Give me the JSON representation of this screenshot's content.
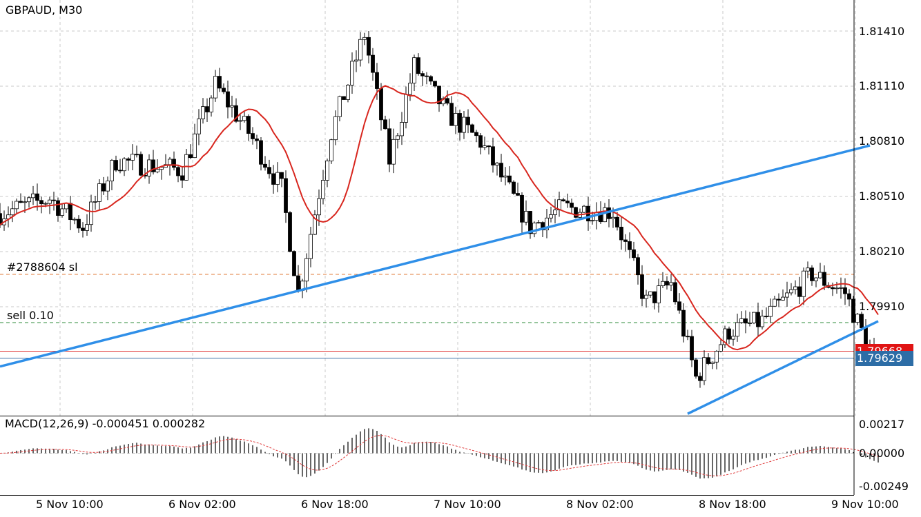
{
  "window": {
    "title": "GBPAUD, M30"
  },
  "colors": {
    "bullish": "#ffffff",
    "bearish": "#000000",
    "ma": "#d8261e",
    "trendline": "#2f8fe8",
    "sl_line": "#e07b39",
    "sell_line": "#2e8b3a",
    "bid_line": "#e03a3a",
    "ask_line": "#3a6fa8",
    "grid": "#c8c8c8",
    "signal": "#e03a3a",
    "ask_tag": "#2d6da6",
    "bid_tag": "#e01414"
  },
  "price_axis": {
    "ticks": [
      "1.81410",
      "1.81110",
      "1.80810",
      "1.80510",
      "1.80210",
      "1.79910"
    ],
    "bid_tag": "1.79668",
    "ask_tag": "1.79629"
  },
  "orders": {
    "sl_label": "#2788604 sl",
    "sell_label": "sell 0.10"
  },
  "indicator": {
    "label": "MACD(12,26,9) -0.000451 0.000282",
    "ticks": [
      "0.00217",
      "0.00000",
      "-0.00249"
    ]
  },
  "time_axis": {
    "ticks": [
      "5 Nov 10:00",
      "6 Nov 02:00",
      "6 Nov 18:00",
      "7 Nov 10:00",
      "8 Nov 02:00",
      "8 Nov 18:00",
      "9 Nov 10:00"
    ]
  },
  "chart_data": {
    "type": "candlestick",
    "symbol": "GBPAUD",
    "timeframe": "M30",
    "ylim": [
      1.794,
      1.816
    ],
    "trendlines": [
      {
        "name": "upper",
        "from": [
          "5 Nov 00:00",
          1.7966
        ],
        "to": [
          "9 Nov 09:00",
          1.8083
        ]
      },
      {
        "name": "lower",
        "from": [
          "8 Nov 11:00",
          1.7941
        ],
        "to": [
          "9 Nov 10:00",
          1.799
        ]
      }
    ],
    "levels": [
      {
        "label": "#2788604 sl",
        "value": 1.798
      },
      {
        "label": "sell 0.10",
        "value": 1.7973
      }
    ],
    "anchors": [
      {
        "time": "5 Nov 00:00",
        "close": 1.8047
      },
      {
        "time": "5 Nov 06:00",
        "close": 1.8055
      },
      {
        "time": "5 Nov 10:00",
        "close": 1.804
      },
      {
        "time": "5 Nov 14:00",
        "close": 1.8075
      },
      {
        "time": "5 Nov 22:00",
        "close": 1.807
      },
      {
        "time": "6 Nov 02:00",
        "close": 1.8115
      },
      {
        "time": "6 Nov 06:00",
        "close": 1.809
      },
      {
        "time": "6 Nov 10:00",
        "close": 1.806
      },
      {
        "time": "6 Nov 12:00",
        "close": 1.8005
      },
      {
        "time": "6 Nov 16:00",
        "close": 1.809
      },
      {
        "time": "6 Nov 20:00",
        "close": 1.8142
      },
      {
        "time": "6 Nov 23:00",
        "close": 1.8075
      },
      {
        "time": "7 Nov 02:00",
        "close": 1.8125
      },
      {
        "time": "7 Nov 06:00",
        "close": 1.81
      },
      {
        "time": "7 Nov 10:00",
        "close": 1.8085
      },
      {
        "time": "7 Nov 16:00",
        "close": 1.804
      },
      {
        "time": "7 Nov 20:00",
        "close": 1.805
      },
      {
        "time": "8 Nov 02:00",
        "close": 1.8048
      },
      {
        "time": "8 Nov 06:00",
        "close": 1.8
      },
      {
        "time": "8 Nov 09:00",
        "close": 1.801
      },
      {
        "time": "8 Nov 12:00",
        "close": 1.796
      },
      {
        "time": "8 Nov 16:00",
        "close": 1.7985
      },
      {
        "time": "8 Nov 20:00",
        "close": 1.799
      },
      {
        "time": "9 Nov 02:00",
        "close": 1.8015
      },
      {
        "time": "9 Nov 06:00",
        "close": 1.8005
      },
      {
        "time": "9 Nov 10:00",
        "close": 1.7964
      }
    ],
    "macd": {
      "fast": 12,
      "slow": 26,
      "signal": 9,
      "value": -0.000451,
      "signal_value": 0.000282,
      "ylim": [
        -0.00249,
        0.00217
      ]
    }
  }
}
